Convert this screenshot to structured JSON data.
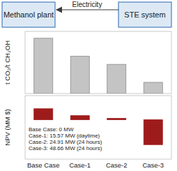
{
  "diagram": {
    "nodes": [
      {
        "label": "Methanol plant"
      },
      {
        "label": "STE system"
      }
    ],
    "edges": [
      {
        "label": "Electricity"
      }
    ]
  },
  "chart_data": [
    {
      "type": "bar",
      "y_label": "t CO₂/t CH₃OH",
      "categories": [
        null,
        null,
        null,
        null
      ],
      "values": [
        0.89,
        0.6,
        0.47,
        0.18
      ],
      "color": "#c4c4c4",
      "ylim": [
        0,
        1
      ],
      "tick_labels": false
    },
    {
      "type": "bar",
      "y_label": "NPV (MM $)",
      "categories": [
        "Base Case",
        "Case-1",
        "Case-2",
        "Case-3"
      ],
      "values": [
        16,
        6,
        2,
        -36
      ],
      "color": "#9e1b1b",
      "ylim": [
        -57,
        35
      ],
      "tick_labels": "x",
      "annotations": [
        "Base Case: 0 MW",
        "Case-1: 15.57 MW (daytime)",
        "Case-2: 24.91 MW (24 hours)",
        "Case-3: 48.66 MW (24 hours)"
      ]
    }
  ]
}
